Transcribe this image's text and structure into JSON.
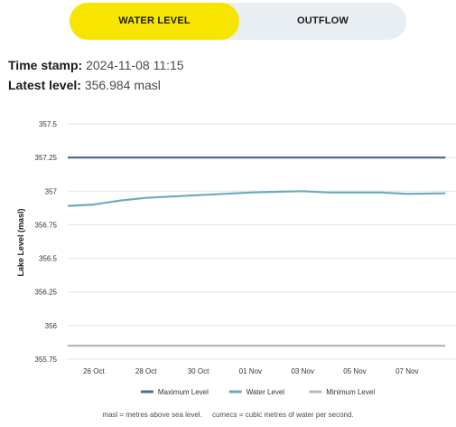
{
  "tabs": {
    "water_level": "WATER LEVEL",
    "outflow": "OUTFLOW"
  },
  "info": {
    "timestamp_label": "Time stamp:",
    "timestamp_value": "2024-11-08 11:15",
    "latest_label": "Latest level:",
    "latest_value": "356.984 masl"
  },
  "colors": {
    "accent_yellow": "#f7e500",
    "maximum_level": "#4e6e90",
    "water_level": "#6ea9bd",
    "minimum_level": "#b8b8b8"
  },
  "chart_data": {
    "type": "line",
    "ylabel": "Lake Level (masl)",
    "ylim": [
      355.75,
      357.5
    ],
    "xlim": [
      "2024-10-25",
      "2024-11-08"
    ],
    "y_ticks": [
      "357.5",
      "357.25",
      "357",
      "356.75",
      "356.5",
      "356.25",
      "356",
      "355.75"
    ],
    "x_ticks": [
      "26 Oct",
      "28 Oct",
      "30 Oct",
      "01 Nov",
      "03 Nov",
      "05 Nov",
      "07 Nov"
    ],
    "grid": "horizontal",
    "legend_position": "bottom",
    "series": [
      {
        "name": "Maximum Level",
        "color": "#4e6e90",
        "x": [
          "2024-10-25",
          "2024-11-08 11:15"
        ],
        "y": [
          357.25,
          357.25
        ]
      },
      {
        "name": "Water Level",
        "color": "#6ea9bd",
        "x": [
          "2024-10-25",
          "2024-10-26",
          "2024-10-27",
          "2024-10-28",
          "2024-10-29",
          "2024-10-30",
          "2024-10-31",
          "2024-11-01",
          "2024-11-02",
          "2024-11-03",
          "2024-11-04",
          "2024-11-05",
          "2024-11-06",
          "2024-11-07",
          "2024-11-08 11:15"
        ],
        "y": [
          356.89,
          356.9,
          356.93,
          356.95,
          356.96,
          356.97,
          356.98,
          356.99,
          356.995,
          357.0,
          356.99,
          356.99,
          356.99,
          356.98,
          356.984
        ]
      },
      {
        "name": "Minimum Level",
        "color": "#b8b8b8",
        "x": [
          "2024-10-25",
          "2024-11-08 11:15"
        ],
        "y": [
          355.85,
          355.85
        ]
      }
    ]
  },
  "footnote": {
    "masl": "masl = metres above sea level.",
    "cumecs": "cumecs = cubic metres of water per second."
  }
}
